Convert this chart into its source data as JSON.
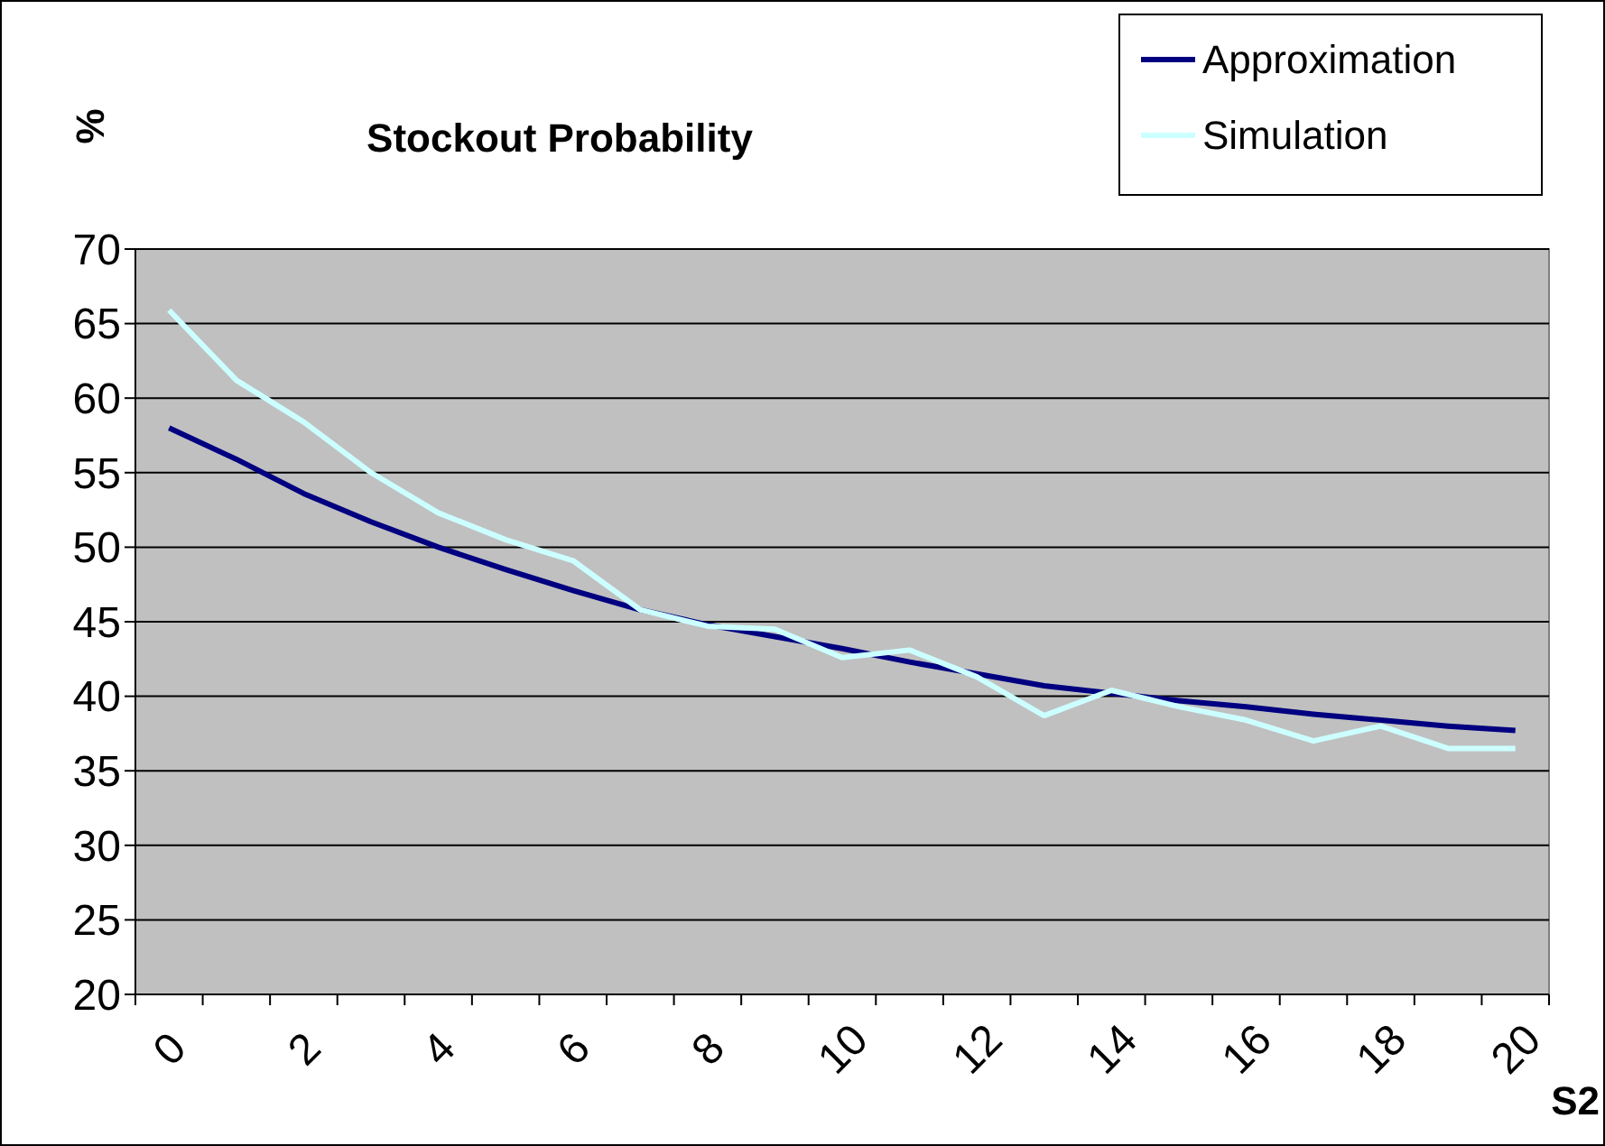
{
  "chart_data": {
    "type": "line",
    "title": "Stockout Probability",
    "ylabel": "%",
    "xlabel": "S2",
    "categories": [
      "0",
      null,
      "2",
      null,
      "4",
      null,
      "6",
      null,
      "8",
      null,
      "10",
      null,
      "12",
      null,
      "14",
      null,
      "16",
      null,
      "18",
      null,
      "20"
    ],
    "series": [
      {
        "name": "Approximation",
        "color": "#000080",
        "values": [
          58,
          55.9,
          53.6,
          51.7,
          50,
          48.5,
          47.1,
          45.8,
          44.8,
          44,
          43.2,
          42.3,
          41.5,
          40.7,
          40.2,
          39.7,
          39.3,
          38.8,
          38.4,
          38,
          37.7
        ]
      },
      {
        "name": "Simulation",
        "color": "#ccffff",
        "values": [
          65.9,
          61.2,
          58.4,
          55,
          52.3,
          50.5,
          49.1,
          45.8,
          44.7,
          44.5,
          42.6,
          43.1,
          41.3,
          38.7,
          40.4,
          39.3,
          38.4,
          37,
          38,
          36.5,
          36.5
        ]
      }
    ],
    "ylim": [
      20,
      70
    ],
    "yticks": [
      20,
      25,
      30,
      35,
      40,
      45,
      50,
      55,
      60,
      65,
      70
    ],
    "grid": "y",
    "legend": "top right",
    "marker": "none",
    "line_style": "solid"
  }
}
